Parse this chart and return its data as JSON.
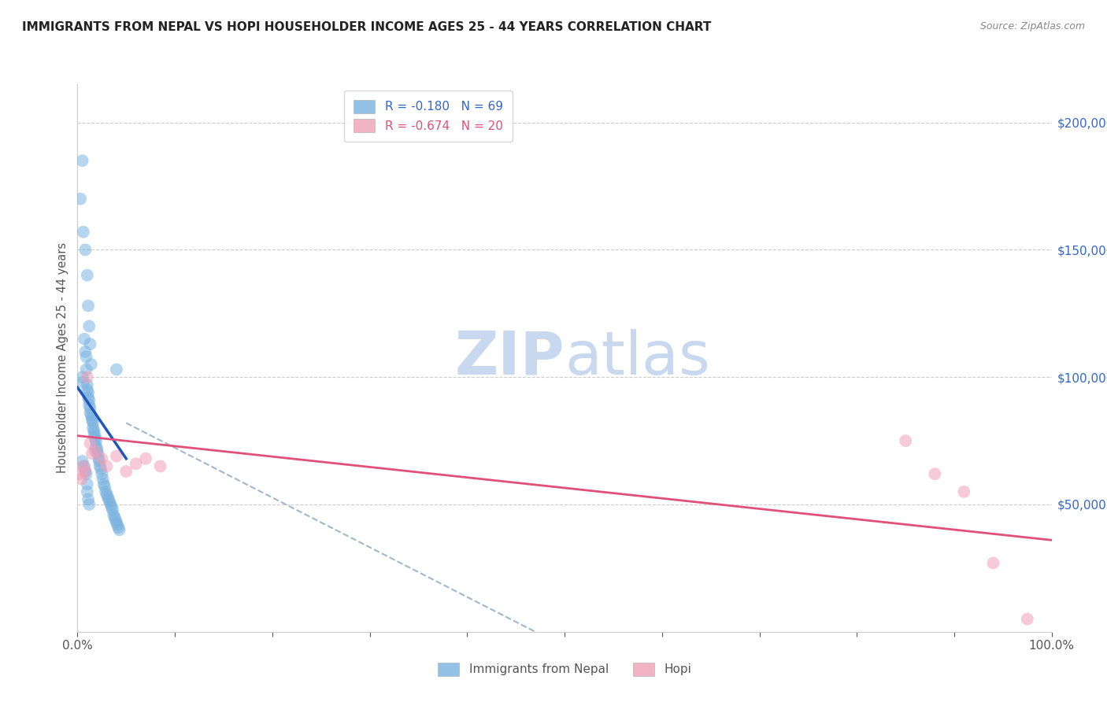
{
  "title": "IMMIGRANTS FROM NEPAL VS HOPI HOUSEHOLDER INCOME AGES 25 - 44 YEARS CORRELATION CHART",
  "source": "Source: ZipAtlas.com",
  "ylabel": "Householder Income Ages 25 - 44 years",
  "y_tick_labels": [
    "$200,000",
    "$150,000",
    "$100,000",
    "$50,000"
  ],
  "y_tick_values": [
    200000,
    150000,
    100000,
    50000
  ],
  "ylim": [
    0,
    215000
  ],
  "xlim": [
    0.0,
    1.0
  ],
  "legend_entries": [
    {
      "label": "R = -0.180   N = 69",
      "color": "#aec6f5"
    },
    {
      "label": "R = -0.674   N = 20",
      "color": "#f5aec6"
    }
  ],
  "nepal_scatter_x": [
    0.003,
    0.005,
    0.006,
    0.008,
    0.01,
    0.011,
    0.012,
    0.013,
    0.014,
    0.005,
    0.006,
    0.007,
    0.008,
    0.009,
    0.009,
    0.01,
    0.01,
    0.011,
    0.011,
    0.012,
    0.012,
    0.013,
    0.013,
    0.014,
    0.015,
    0.015,
    0.016,
    0.016,
    0.017,
    0.017,
    0.018,
    0.018,
    0.019,
    0.019,
    0.02,
    0.02,
    0.021,
    0.022,
    0.022,
    0.023,
    0.024,
    0.025,
    0.026,
    0.027,
    0.028,
    0.029,
    0.03,
    0.031,
    0.032,
    0.033,
    0.034,
    0.035,
    0.036,
    0.037,
    0.038,
    0.039,
    0.04,
    0.041,
    0.042,
    0.043,
    0.005,
    0.007,
    0.008,
    0.009,
    0.01,
    0.01,
    0.011,
    0.012,
    0.04
  ],
  "nepal_scatter_y": [
    170000,
    185000,
    157000,
    150000,
    140000,
    128000,
    120000,
    113000,
    105000,
    100000,
    98000,
    115000,
    110000,
    108000,
    103000,
    97000,
    95000,
    94000,
    92000,
    91000,
    89000,
    88000,
    86000,
    85000,
    84000,
    83000,
    82000,
    80000,
    79000,
    78000,
    77000,
    76000,
    75000,
    73000,
    72000,
    71000,
    70000,
    68000,
    67000,
    65000,
    64000,
    62000,
    60000,
    58000,
    57000,
    55000,
    54000,
    53000,
    52000,
    51000,
    50000,
    49000,
    48000,
    46000,
    45000,
    44000,
    43000,
    42000,
    41000,
    40000,
    67000,
    65000,
    63000,
    62000,
    58000,
    55000,
    52000,
    50000,
    103000
  ],
  "hopi_scatter_x": [
    0.002,
    0.004,
    0.006,
    0.008,
    0.01,
    0.013,
    0.015,
    0.018,
    0.025,
    0.03,
    0.04,
    0.05,
    0.06,
    0.07,
    0.085,
    0.85,
    0.88,
    0.91,
    0.94,
    0.975
  ],
  "hopi_scatter_y": [
    62000,
    60000,
    65000,
    63000,
    100000,
    74000,
    70000,
    71000,
    68000,
    65000,
    69000,
    63000,
    66000,
    68000,
    65000,
    75000,
    62000,
    55000,
    27000,
    5000
  ],
  "nepal_line_x": [
    0.0,
    0.05
  ],
  "nepal_line_y": [
    96000,
    68000
  ],
  "hopi_line_x": [
    0.0,
    1.0
  ],
  "hopi_line_y": [
    77000,
    36000
  ],
  "dashed_line_x": [
    0.05,
    0.47
  ],
  "dashed_line_y": [
    82000,
    0
  ],
  "nepal_color": "#7ab3e0",
  "hopi_color": "#f0a0b8",
  "nepal_line_color": "#2255bb",
  "hopi_line_color": "#e0507a",
  "dashed_line_color": "#a0b8cc",
  "watermark_zip": "ZIP",
  "watermark_atlas": "atlas",
  "watermark_color": "#c8d8ee",
  "legend_label_nepal": "Immigrants from Nepal",
  "legend_label_hopi": "Hopi",
  "background_color": "#ffffff",
  "title_color": "#222222",
  "source_color": "#888888",
  "axis_color": "#cccccc",
  "tick_color": "#555555",
  "right_tick_color": "#3366cc"
}
